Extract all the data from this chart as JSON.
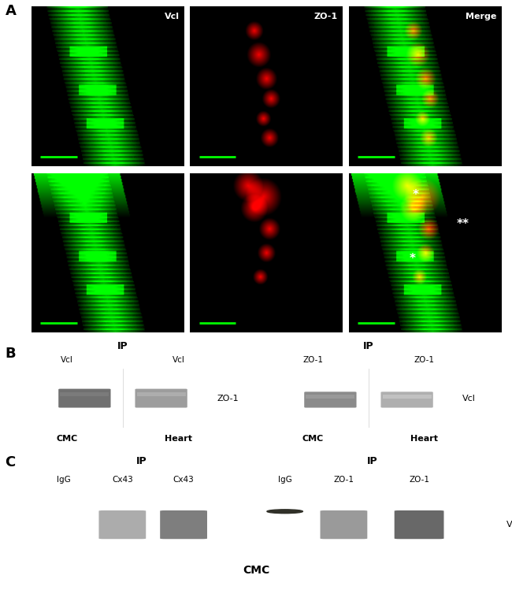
{
  "panel_A_label": "A",
  "panel_B_label": "B",
  "panel_C_label": "C",
  "row1_labels": [
    "Vcl",
    "ZO-1",
    "Merge"
  ],
  "B_left_ip_label": "IP",
  "B_left_cols": [
    "Vcl",
    "Vcl"
  ],
  "B_left_band_label": "ZO-1",
  "B_left_x_labels": [
    "CMC",
    "Heart"
  ],
  "B_right_ip_label": "IP",
  "B_right_cols": [
    "ZO-1",
    "ZO-1"
  ],
  "B_right_band_label": "Vcl",
  "B_right_x_labels": [
    "CMC",
    "Heart"
  ],
  "C_left_ip_label": "IP",
  "C_left_cols": [
    "IgG",
    "Cx43",
    "Cx43"
  ],
  "C_right_ip_label": "IP",
  "C_right_cols": [
    "IgG",
    "ZO-1",
    "ZO-1"
  ],
  "C_band_label": "Vcl",
  "C_bottom_label": "CMC",
  "scale_bar_color": "#00ff00",
  "blot_bg_light": "#c8c5c0",
  "blot_bg_darker": "#b0ada8",
  "band_dark": "#585550",
  "band_medium": "#807d78",
  "band_light": "#9a9790",
  "black": "#000000",
  "white": "#ffffff"
}
